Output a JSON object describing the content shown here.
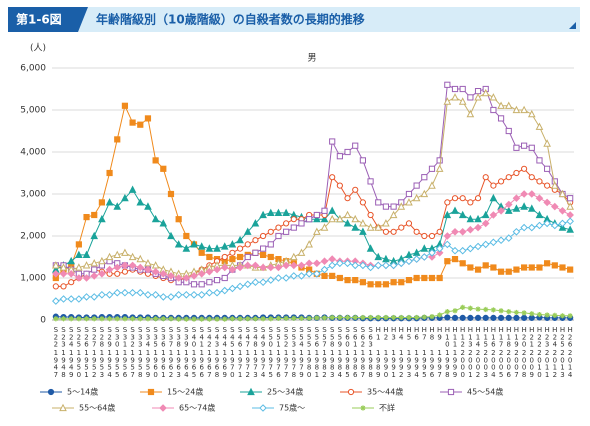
{
  "chart_data": {
    "type": "line",
    "figure_label": "第1-6図",
    "title": "年齢階級別（10歳階級）の自殺者数の長期的推移",
    "subtitle": "男",
    "y_unit": "(人)",
    "ylim": [
      0,
      6000
    ],
    "yticks": [
      0,
      {
        "value": 1000,
        "label": "1,000"
      },
      {
        "value": 2000,
        "label": "2,000"
      },
      {
        "value": 3000,
        "label": "3,000"
      },
      {
        "value": 4000,
        "label": "4,000"
      },
      {
        "value": 5000,
        "label": "5,000"
      },
      {
        "value": 6000,
        "label": "6,000"
      }
    ],
    "grid": true,
    "legend_position": "bottom",
    "categories": [
      "S22",
      "S23",
      "S24",
      "S25",
      "S26",
      "S27",
      "S28",
      "S29",
      "S30",
      "S31",
      "S32",
      "S33",
      "S34",
      "S35",
      "S36",
      "S37",
      "S38",
      "S39",
      "S40",
      "S41",
      "S42",
      "S43",
      "S44",
      "S45",
      "S46",
      "S47",
      "S48",
      "S49",
      "S50",
      "S51",
      "S52",
      "S53",
      "S54",
      "S55",
      "S56",
      "S57",
      "S58",
      "S59",
      "S60",
      "S61",
      "S62",
      "S63",
      "H1",
      "H2",
      "H3",
      "H4",
      "H5",
      "H6",
      "H7",
      "H8",
      "H9",
      "H10",
      "H11",
      "H12",
      "H13",
      "H14",
      "H15",
      "H16",
      "H17",
      "H18",
      "H19",
      "H20",
      "H21",
      "H22",
      "H23",
      "H24",
      "H25",
      "H26"
    ],
    "years": [
      1947,
      1948,
      1949,
      1950,
      1951,
      1952,
      1953,
      1954,
      1955,
      1956,
      1957,
      1958,
      1959,
      1960,
      1961,
      1962,
      1963,
      1964,
      1965,
      1966,
      1967,
      1968,
      1969,
      1970,
      1971,
      1972,
      1973,
      1974,
      1975,
      1976,
      1977,
      1978,
      1979,
      1980,
      1981,
      1982,
      1983,
      1984,
      1985,
      1986,
      1987,
      1988,
      1989,
      1990,
      1991,
      1992,
      1993,
      1994,
      1995,
      1996,
      1997,
      1998,
      1999,
      2000,
      2001,
      2002,
      2003,
      2004,
      2005,
      2006,
      2007,
      2008,
      2009,
      2010,
      2011,
      2012,
      2013,
      2014
    ],
    "series": [
      {
        "name": "5～14歳",
        "color": "#1f5aa6",
        "marker": "circle",
        "filled": true,
        "values": [
          80,
          70,
          70,
          60,
          60,
          60,
          70,
          70,
          70,
          70,
          60,
          60,
          60,
          50,
          50,
          50,
          50,
          50,
          50,
          50,
          50,
          50,
          50,
          50,
          50,
          50,
          50,
          60,
          60,
          60,
          60,
          60,
          60,
          50,
          50,
          60,
          50,
          50,
          50,
          50,
          40,
          40,
          40,
          40,
          40,
          40,
          40,
          40,
          50,
          50,
          50,
          60,
          50,
          50,
          50,
          50,
          50,
          50,
          50,
          50,
          50,
          50,
          50,
          60,
          50,
          50,
          50,
          50
        ]
      },
      {
        "name": "15～24歳",
        "color": "#f08a1c",
        "marker": "square",
        "filled": true,
        "values": [
          1000,
          1200,
          1300,
          1800,
          2450,
          2500,
          2800,
          3500,
          4300,
          5100,
          4700,
          4650,
          4800,
          3800,
          3600,
          3000,
          2400,
          2000,
          1800,
          1600,
          1500,
          1450,
          1400,
          1450,
          1500,
          1550,
          1600,
          1550,
          1500,
          1450,
          1400,
          1350,
          1250,
          1200,
          1100,
          1050,
          1050,
          1000,
          950,
          950,
          900,
          850,
          850,
          850,
          900,
          900,
          950,
          1000,
          1000,
          1000,
          1000,
          1400,
          1450,
          1350,
          1250,
          1200,
          1300,
          1250,
          1150,
          1150,
          1200,
          1250,
          1250,
          1250,
          1350,
          1300,
          1250,
          1200
        ]
      },
      {
        "name": "25～34歳",
        "color": "#1aa39a",
        "marker": "triangle",
        "filled": true,
        "values": [
          1200,
          1300,
          1400,
          1550,
          1550,
          2000,
          2400,
          2800,
          2700,
          2900,
          3100,
          2800,
          2700,
          2400,
          2300,
          2000,
          1800,
          1700,
          1800,
          1750,
          1700,
          1700,
          1750,
          1800,
          1900,
          2100,
          2300,
          2500,
          2550,
          2550,
          2550,
          2500,
          2450,
          2400,
          2400,
          2400,
          2600,
          2400,
          2300,
          2200,
          2100,
          1700,
          1500,
          1450,
          1400,
          1450,
          1550,
          1600,
          1700,
          1700,
          1800,
          2500,
          2600,
          2500,
          2400,
          2400,
          2500,
          2900,
          2700,
          2600,
          2650,
          2700,
          2650,
          2500,
          2400,
          2300,
          2200,
          2150
        ]
      },
      {
        "name": "35～44歳",
        "color": "#e8552a",
        "marker": "circle",
        "filled": false,
        "values": [
          800,
          800,
          900,
          1000,
          1100,
          1200,
          1150,
          1100,
          1100,
          1150,
          1200,
          1150,
          1100,
          1050,
          1000,
          950,
          950,
          1000,
          1100,
          1200,
          1300,
          1400,
          1500,
          1600,
          1700,
          1800,
          1900,
          2000,
          2100,
          2200,
          2300,
          2400,
          2400,
          2500,
          2500,
          2500,
          3400,
          3200,
          2900,
          3100,
          2800,
          2500,
          2200,
          2100,
          2100,
          2200,
          2300,
          2100,
          2000,
          2000,
          2100,
          2800,
          2900,
          2900,
          2800,
          2900,
          3400,
          3200,
          3300,
          3400,
          3500,
          3600,
          3400,
          3300,
          3200,
          3100,
          3000,
          2800
        ]
      },
      {
        "name": "45～54歳",
        "color": "#9b5fb5",
        "marker": "square",
        "filled": false,
        "values": [
          1300,
          1300,
          1200,
          1100,
          1100,
          1200,
          1300,
          1400,
          1350,
          1300,
          1250,
          1200,
          1200,
          1100,
          1050,
          1000,
          900,
          900,
          850,
          850,
          900,
          950,
          1000,
          1200,
          1300,
          1500,
          1600,
          1700,
          1800,
          2000,
          2100,
          2200,
          2300,
          2400,
          2500,
          2600,
          4250,
          3900,
          4000,
          4150,
          3800,
          3300,
          2800,
          2700,
          2700,
          2800,
          3000,
          3200,
          3400,
          3600,
          3800,
          5600,
          5500,
          5500,
          5300,
          5450,
          5500,
          5000,
          4800,
          4500,
          4100,
          4150,
          4100,
          3800,
          3600,
          3300,
          3000,
          2900
        ]
      },
      {
        "name": "55～64歳",
        "color": "#c8b06a",
        "marker": "triangle",
        "filled": false,
        "values": [
          1300,
          1250,
          1200,
          1250,
          1300,
          1350,
          1400,
          1500,
          1550,
          1600,
          1500,
          1450,
          1350,
          1300,
          1200,
          1150,
          1100,
          1100,
          1150,
          1200,
          1250,
          1300,
          1300,
          1300,
          1300,
          1300,
          1250,
          1250,
          1300,
          1350,
          1400,
          1500,
          1600,
          1800,
          2100,
          2200,
          2400,
          2400,
          2500,
          2400,
          2300,
          2200,
          2200,
          2300,
          2500,
          2700,
          2800,
          2900,
          3000,
          3200,
          3600,
          5200,
          5300,
          5200,
          4900,
          5300,
          5400,
          5300,
          5100,
          5100,
          5000,
          5000,
          4900,
          4600,
          4200,
          3200,
          3000,
          2700
        ]
      },
      {
        "name": "65～74歳",
        "color": "#f08ab4",
        "marker": "diamond",
        "filled": true,
        "values": [
          1100,
          1100,
          1100,
          1000,
          1000,
          1050,
          1100,
          1200,
          1250,
          1300,
          1300,
          1250,
          1200,
          1150,
          1100,
          1050,
          1000,
          1000,
          1050,
          1100,
          1150,
          1200,
          1250,
          1200,
          1250,
          1300,
          1300,
          1250,
          1250,
          1250,
          1300,
          1300,
          1300,
          1350,
          1350,
          1400,
          1450,
          1400,
          1400,
          1400,
          1350,
          1300,
          1300,
          1300,
          1300,
          1350,
          1400,
          1450,
          1500,
          1500,
          1600,
          2000,
          2100,
          2100,
          2150,
          2200,
          2300,
          2500,
          2600,
          2750,
          2900,
          3000,
          3000,
          2900,
          2800,
          2700,
          2600,
          2500
        ]
      },
      {
        "name": "75歳～",
        "color": "#5bbce4",
        "marker": "diamond",
        "filled": false,
        "values": [
          450,
          500,
          500,
          500,
          550,
          550,
          600,
          600,
          650,
          650,
          650,
          650,
          600,
          600,
          550,
          550,
          600,
          600,
          600,
          600,
          650,
          650,
          700,
          750,
          800,
          850,
          900,
          900,
          950,
          1000,
          1000,
          1050,
          1050,
          1100,
          1100,
          1200,
          1300,
          1350,
          1350,
          1300,
          1300,
          1250,
          1300,
          1300,
          1300,
          1350,
          1400,
          1450,
          1500,
          1600,
          1700,
          1800,
          1650,
          1650,
          1700,
          1750,
          1800,
          1850,
          1900,
          1950,
          2100,
          2200,
          2200,
          2250,
          2300,
          2250,
          2300,
          2350
        ]
      },
      {
        "name": "不詳",
        "color": "#9acd5a",
        "marker": "star",
        "filled": true,
        "values": [
          30,
          30,
          30,
          30,
          30,
          30,
          30,
          30,
          30,
          30,
          30,
          30,
          30,
          30,
          30,
          30,
          20,
          20,
          20,
          20,
          20,
          20,
          20,
          30,
          30,
          30,
          30,
          30,
          30,
          40,
          40,
          40,
          40,
          40,
          50,
          50,
          60,
          60,
          60,
          60,
          60,
          60,
          60,
          60,
          60,
          60,
          60,
          60,
          70,
          80,
          120,
          200,
          220,
          300,
          280,
          260,
          250,
          240,
          220,
          200,
          180,
          170,
          150,
          130,
          120,
          110,
          100,
          100
        ]
      }
    ]
  }
}
